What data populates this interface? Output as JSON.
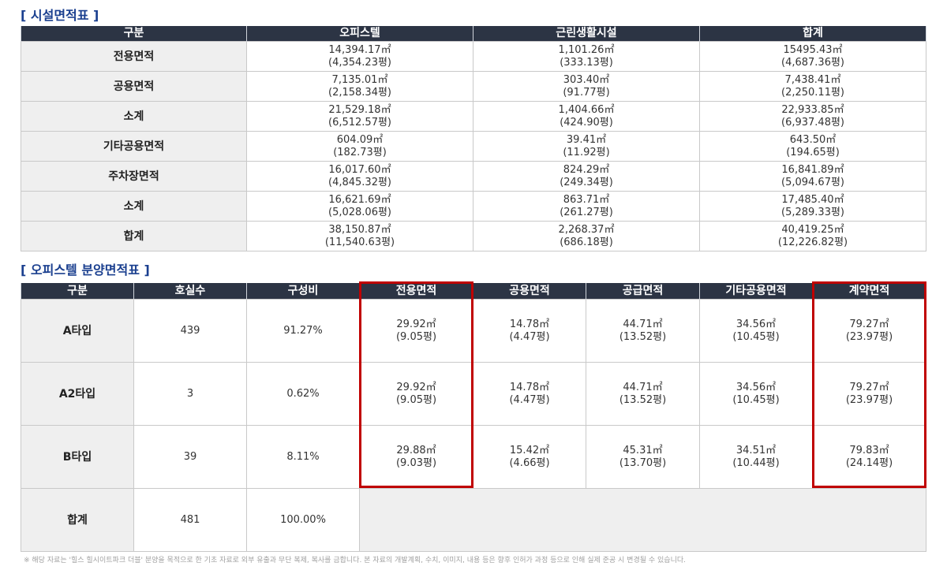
{
  "facility_table": {
    "title": "[ 시설면적표 ]",
    "headers": [
      "구분",
      "오피스텔",
      "근린생활시설",
      "합계"
    ],
    "rows": [
      {
        "label": "전용면적",
        "office": [
          "14,394.17㎡",
          "(4,354.23평)"
        ],
        "retail": [
          "1,101.26㎡",
          "(333.13평)"
        ],
        "total": [
          "15495.43㎡",
          "(4,687.36평)"
        ]
      },
      {
        "label": "공용면적",
        "office": [
          "7,135.01㎡",
          "(2,158.34평)"
        ],
        "retail": [
          "303.40㎡",
          "(91.77평)"
        ],
        "total": [
          "7,438.41㎡",
          "(2,250.11평)"
        ]
      },
      {
        "label": "소계",
        "office": [
          "21,529.18㎡",
          "(6,512.57평)"
        ],
        "retail": [
          "1,404.66㎡",
          "(424.90평)"
        ],
        "total": [
          "22,933.85㎡",
          "(6,937.48평)"
        ]
      },
      {
        "label": "기타공용면적",
        "office": [
          "604.09㎡",
          "(182.73평)"
        ],
        "retail": [
          "39.41㎡",
          "(11.92평)"
        ],
        "total": [
          "643.50㎡",
          "(194.65평)"
        ]
      },
      {
        "label": "주차장면적",
        "office": [
          "16,017.60㎡",
          "(4,845.32평)"
        ],
        "retail": [
          "824.29㎡",
          "(249.34평)"
        ],
        "total": [
          "16,841.89㎡",
          "(5,094.67평)"
        ]
      },
      {
        "label": "소계",
        "office": [
          "16,621.69㎡",
          "(5,028.06평)"
        ],
        "retail": [
          "863.71㎡",
          "(261.27평)"
        ],
        "total": [
          "17,485.40㎡",
          "(5,289.33평)"
        ]
      },
      {
        "label": "합계",
        "office": [
          "38,150.87㎡",
          "(11,540.63평)"
        ],
        "retail": [
          "2,268.37㎡",
          "(686.18평)"
        ],
        "total": [
          "40,419.25㎡",
          "(12,226.82평)"
        ]
      }
    ]
  },
  "sale_table": {
    "title": "[ 오피스텔 분양면적표 ]",
    "headers": [
      "구분",
      "호실수",
      "구성비",
      "전용면적",
      "공용면적",
      "공급면적",
      "기타공용면적",
      "계약면적"
    ],
    "rows": [
      {
        "type": "A타입",
        "units": "439",
        "ratio": "91.27%",
        "exclusive": [
          "29.92㎡",
          "(9.05평)"
        ],
        "common": [
          "14.78㎡",
          "(4.47평)"
        ],
        "supply": [
          "44.71㎡",
          "(13.52평)"
        ],
        "other": [
          "34.56㎡",
          "(10.45평)"
        ],
        "contract": [
          "79.27㎡",
          "(23.97평)"
        ]
      },
      {
        "type": "A2타입",
        "units": "3",
        "ratio": "0.62%",
        "exclusive": [
          "29.92㎡",
          "(9.05평)"
        ],
        "common": [
          "14.78㎡",
          "(4.47평)"
        ],
        "supply": [
          "44.71㎡",
          "(13.52평)"
        ],
        "other": [
          "34.56㎡",
          "(10.45평)"
        ],
        "contract": [
          "79.27㎡",
          "(23.97평)"
        ]
      },
      {
        "type": "B타입",
        "units": "39",
        "ratio": "8.11%",
        "exclusive": [
          "29.88㎡",
          "(9.03평)"
        ],
        "common": [
          "15.42㎡",
          "(4.66평)"
        ],
        "supply": [
          "45.31㎡",
          "(13.70평)"
        ],
        "other": [
          "34.51㎡",
          "(10.44평)"
        ],
        "contract": [
          "79.83㎡",
          "(24.14평)"
        ]
      }
    ],
    "total": {
      "label": "합계",
      "units": "481",
      "ratio": "100.00%"
    },
    "highlight_color": "#c00000"
  },
  "footnote": "※ 해당 자료는 '힐스 힐시이트파크 더블' 분양을 목적으로 한 기초 자료로 외부 유출과 무단 복제, 복사를 금합니다. 본 자료의 개발계획, 수치, 이미지, 내용 등은 향후 인허가 과정 등으로 인해 실제 준공 시 변경될 수 있습니다."
}
